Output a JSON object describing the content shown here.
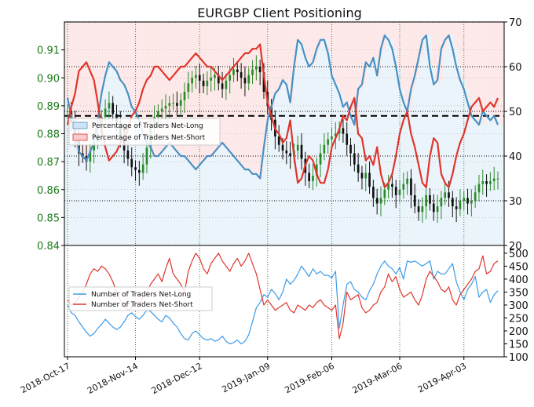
{
  "chart_data": [
    {
      "panel": "top",
      "type": "line",
      "title": "EURGBP Client Positioning",
      "xlabel": "",
      "ylabel": "",
      "x_tick_labels": [
        "2018-Oct-17",
        "2018-Nov-14",
        "2018-Dec-12",
        "2019-Jan-09",
        "2019-Feb-06",
        "2019-Mar-06",
        "2019-Apr-03"
      ],
      "y_left_ticks": [
        "0.84",
        "0.85",
        "0.86",
        "0.87",
        "0.88",
        "0.89",
        "0.90",
        "0.91"
      ],
      "y_left_range": [
        0.84,
        0.92
      ],
      "y_right_ticks": [
        "20",
        "30",
        "40",
        "50",
        "60",
        "70"
      ],
      "y_right_range": [
        20,
        70
      ],
      "reference_line_right": 49,
      "grid": true,
      "legend": {
        "placement": "left",
        "items": [
          "Percentage of Traders Net-Long",
          "Percentage of Traders Net-Short"
        ]
      },
      "price_close": [
        0.888,
        0.884,
        0.879,
        0.873,
        0.872,
        0.87,
        0.874,
        0.877,
        0.88,
        0.886,
        0.889,
        0.891,
        0.887,
        0.884,
        0.879,
        0.874,
        0.871,
        0.868,
        0.867,
        0.866,
        0.869,
        0.875,
        0.882,
        0.886,
        0.888,
        0.889,
        0.89,
        0.891,
        0.891,
        0.89,
        0.892,
        0.895,
        0.898,
        0.9,
        0.901,
        0.899,
        0.897,
        0.899,
        0.9,
        0.901,
        0.898,
        0.896,
        0.899,
        0.901,
        0.903,
        0.902,
        0.9,
        0.898,
        0.901,
        0.903,
        0.904,
        0.902,
        0.895,
        0.89,
        0.885,
        0.879,
        0.876,
        0.874,
        0.873,
        0.872,
        0.874,
        0.876,
        0.871,
        0.866,
        0.863,
        0.865,
        0.869,
        0.873,
        0.876,
        0.878,
        0.879,
        0.88,
        0.882,
        0.88,
        0.876,
        0.873,
        0.869,
        0.866,
        0.864,
        0.866,
        0.861,
        0.857,
        0.855,
        0.857,
        0.86,
        0.862,
        0.861,
        0.858,
        0.86,
        0.862,
        0.864,
        0.858,
        0.854,
        0.852,
        0.854,
        0.858,
        0.855,
        0.852,
        0.854,
        0.857,
        0.859,
        0.857,
        0.854,
        0.853,
        0.856,
        0.857,
        0.855,
        0.856,
        0.859,
        0.862,
        0.863,
        0.862,
        0.863,
        0.864,
        0.864
      ],
      "series": [
        {
          "name": "Percentage of Traders Net-Long",
          "color": "#4a90c2",
          "values": [
            53,
            49,
            46,
            41,
            40,
            39,
            41,
            43,
            48,
            54,
            58,
            61,
            60,
            59,
            57,
            56,
            54,
            51,
            50,
            48,
            45,
            43,
            42,
            40,
            40,
            41,
            42,
            43,
            42,
            41,
            40,
            40,
            39,
            38,
            37,
            38,
            39,
            40,
            40,
            41,
            42,
            43,
            42,
            41,
            40,
            39,
            38,
            37,
            37,
            36,
            36,
            35,
            42,
            48,
            51,
            54,
            55,
            57,
            56,
            52,
            60,
            66,
            65,
            62,
            60,
            61,
            64,
            66,
            66,
            63,
            58,
            56,
            54,
            51,
            52,
            49,
            47,
            55,
            56,
            61,
            60,
            62,
            58,
            64,
            67,
            66,
            64,
            60,
            55,
            52,
            50,
            55,
            58,
            62,
            66,
            67,
            60,
            56,
            57,
            64,
            66,
            67,
            64,
            60,
            57,
            55,
            52,
            49,
            48,
            47,
            50,
            49,
            48,
            49,
            47
          ]
        },
        {
          "name": "Percentage of Traders Net-Short",
          "color": "#e0352b",
          "values": [
            47,
            51,
            54,
            59,
            60,
            61,
            59,
            57,
            52,
            46,
            42,
            39,
            40,
            41,
            43,
            44,
            46,
            49,
            50,
            52,
            55,
            57,
            58,
            60,
            60,
            59,
            58,
            57,
            58,
            59,
            60,
            60,
            61,
            62,
            63,
            62,
            61,
            60,
            60,
            59,
            58,
            57,
            58,
            59,
            60,
            61,
            62,
            63,
            63,
            64,
            64,
            65,
            58,
            52,
            49,
            46,
            45,
            43,
            44,
            48,
            40,
            34,
            35,
            38,
            40,
            39,
            36,
            34,
            34,
            37,
            42,
            44,
            46,
            49,
            48,
            51,
            53,
            45,
            44,
            39,
            40,
            38,
            42,
            36,
            33,
            34,
            36,
            40,
            45,
            48,
            50,
            45,
            42,
            38,
            34,
            33,
            40,
            44,
            43,
            36,
            34,
            33,
            36,
            40,
            43,
            45,
            48,
            51,
            52,
            53,
            50,
            51,
            52,
            51,
            53
          ]
        }
      ]
    },
    {
      "panel": "bottom",
      "type": "line",
      "xlabel": "",
      "ylabel": "",
      "y_right_ticks": [
        "100",
        "150",
        "200",
        "250",
        "300",
        "350",
        "400",
        "450",
        "500"
      ],
      "y_range": [
        100,
        530
      ],
      "grid": true,
      "legend": {
        "placement": "left",
        "items": [
          "Number of Traders Net-Long",
          "Number of Traders Net-Short"
        ]
      },
      "series": [
        {
          "name": "Number of Traders Net-Long",
          "color": "#3d9be9",
          "values": [
            300,
            270,
            260,
            235,
            215,
            195,
            180,
            190,
            210,
            225,
            245,
            230,
            215,
            205,
            215,
            235,
            260,
            270,
            255,
            245,
            260,
            280,
            275,
            260,
            245,
            235,
            260,
            250,
            230,
            215,
            190,
            170,
            165,
            190,
            200,
            185,
            170,
            165,
            170,
            160,
            165,
            180,
            160,
            150,
            155,
            165,
            150,
            160,
            185,
            235,
            290,
            310,
            340,
            330,
            360,
            345,
            320,
            350,
            400,
            380,
            395,
            420,
            450,
            430,
            410,
            440,
            420,
            430,
            415,
            415,
            405,
            430,
            210,
            300,
            380,
            390,
            360,
            350,
            330,
            320,
            355,
            380,
            420,
            450,
            470,
            450,
            440,
            420,
            445,
            400,
            470,
            465,
            470,
            460,
            450,
            460,
            470,
            400,
            430,
            420,
            420,
            440,
            460,
            390,
            350,
            320,
            360,
            380,
            410,
            330,
            350,
            360,
            310,
            340,
            355
          ]
        },
        {
          "name": "Number of Traders Net-Short",
          "color": "#e0352b",
          "values": [
            320,
            300,
            310,
            330,
            350,
            380,
            420,
            440,
            430,
            450,
            440,
            420,
            390,
            350,
            320,
            300,
            280,
            290,
            310,
            300,
            330,
            350,
            380,
            400,
            420,
            390,
            440,
            480,
            420,
            400,
            380,
            350,
            430,
            470,
            500,
            480,
            440,
            420,
            460,
            480,
            500,
            470,
            450,
            430,
            460,
            480,
            450,
            470,
            500,
            460,
            420,
            360,
            300,
            320,
            300,
            280,
            290,
            300,
            310,
            280,
            270,
            300,
            290,
            280,
            300,
            290,
            310,
            320,
            300,
            290,
            280,
            300,
            170,
            230,
            350,
            320,
            330,
            340,
            290,
            270,
            280,
            300,
            310,
            350,
            370,
            420,
            390,
            410,
            360,
            330,
            340,
            350,
            320,
            300,
            340,
            400,
            430,
            410,
            390,
            360,
            350,
            370,
            320,
            300,
            340,
            360,
            380,
            400,
            430,
            440,
            490,
            420,
            430,
            460,
            470
          ]
        }
      ]
    }
  ]
}
